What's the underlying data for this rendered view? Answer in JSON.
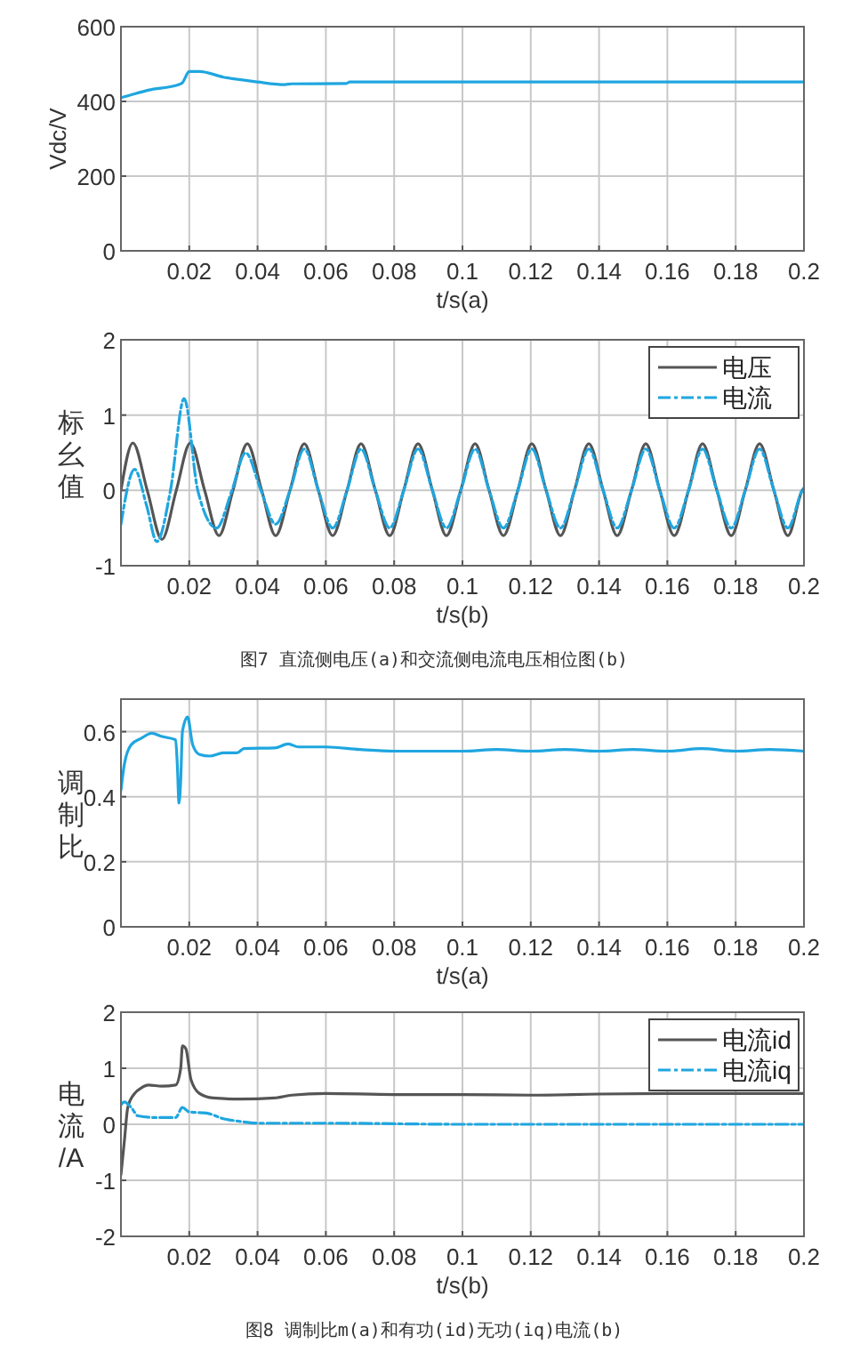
{
  "chart_data": [
    {
      "type": "line",
      "xlabel": "t/s(a)",
      "ylabel": "Vdc/V",
      "xlim": [
        0,
        0.2
      ],
      "ylim": [
        0,
        600
      ],
      "xticks": [
        0.02,
        0.04,
        0.06,
        0.08,
        0.1,
        0.12,
        0.14,
        0.16,
        0.18,
        0.2
      ],
      "yticks": [
        0,
        200,
        400,
        600
      ],
      "grid": true,
      "series": [
        {
          "color": "#1fa6e0",
          "x": [
            0,
            0.002,
            0.008,
            0.017,
            0.018,
            0.02,
            0.023,
            0.03,
            0.04,
            0.048,
            0.05,
            0.066,
            0.067,
            0.2
          ],
          "values": [
            410,
            415,
            430,
            445,
            450,
            480,
            480,
            465,
            452,
            445,
            447,
            448,
            452,
            452
          ]
        }
      ]
    },
    {
      "type": "line",
      "xlabel": "t/s(b)",
      "ylabel": "标幺值",
      "xlim": [
        0,
        0.2
      ],
      "ylim": [
        -1,
        2
      ],
      "xticks": [
        0.02,
        0.04,
        0.06,
        0.08,
        0.1,
        0.12,
        0.14,
        0.16,
        0.18,
        0.2
      ],
      "yticks": [
        -1,
        0,
        1,
        2
      ],
      "grid": true,
      "legend": "top right",
      "annotations": [
        "图7 直流侧电压(a)和交流侧电流电压相位图(b)"
      ],
      "series": [
        {
          "name": "电压",
          "color": "#555555",
          "line_style": "solid",
          "x": [
            0,
            0.0035,
            0.0077,
            0.012,
            0.0162,
            0.0203,
            0.0245,
            0.0287,
            0.0328,
            0.037,
            0.0412,
            0.0453,
            0.0495,
            0.0537,
            0.0578,
            0.062,
            0.0662,
            0.0703,
            0.0745,
            0.0787,
            0.0828,
            0.087,
            0.0912,
            0.0953,
            0.0995,
            0.1037,
            0.1078,
            0.112,
            0.1162,
            0.1203,
            0.1245,
            0.1287,
            0.1328,
            0.137,
            0.1412,
            0.1453,
            0.1495,
            0.1537,
            0.1578,
            0.162,
            0.1662,
            0.1703,
            0.1745,
            0.1787,
            0.1828,
            0.187,
            0.1912,
            0.1953,
            0.1995,
            0.2
          ],
          "values": [
            0,
            0.63,
            0,
            -0.65,
            0,
            0.63,
            0,
            -0.6,
            0,
            0.62,
            0,
            -0.6,
            0,
            0.62,
            0,
            -0.6,
            0,
            0.62,
            0,
            -0.6,
            0,
            0.62,
            0,
            -0.6,
            0,
            0.62,
            0,
            -0.6,
            0,
            0.62,
            0,
            -0.6,
            0,
            0.62,
            0,
            -0.6,
            0,
            0.62,
            0,
            -0.6,
            0,
            0.62,
            0,
            -0.6,
            0,
            0.62,
            0,
            -0.6,
            0,
            0.03
          ]
        },
        {
          "name": "电流",
          "color": "#1fa6e0",
          "line_style": "dashed",
          "x": [
            0,
            0.004,
            0.0075,
            0.0105,
            0.0145,
            0.0185,
            0.0225,
            0.028,
            0.0325,
            0.0365,
            0.041,
            0.0453,
            0.0495,
            0.0537,
            0.0578,
            0.062,
            0.0662,
            0.0703,
            0.0745,
            0.0787,
            0.0828,
            0.087,
            0.0912,
            0.0953,
            0.0995,
            0.1037,
            0.1078,
            0.112,
            0.1162,
            0.1203,
            0.1245,
            0.1287,
            0.1328,
            0.137,
            0.1412,
            0.1453,
            0.1495,
            0.1537,
            0.1578,
            0.162,
            0.1662,
            0.1703,
            0.1745,
            0.1787,
            0.1828,
            0.187,
            0.1912,
            0.1953,
            0.1995,
            0.2
          ],
          "values": [
            -0.45,
            0.28,
            -0.2,
            -0.68,
            0,
            1.22,
            0,
            -0.5,
            0,
            0.5,
            0,
            -0.45,
            0,
            0.55,
            0,
            -0.5,
            0,
            0.55,
            0,
            -0.5,
            0,
            0.55,
            0,
            -0.5,
            0,
            0.55,
            0,
            -0.5,
            0,
            0.55,
            0,
            -0.5,
            0,
            0.55,
            0,
            -0.5,
            0,
            0.55,
            0,
            -0.5,
            0,
            0.55,
            0,
            -0.5,
            0,
            0.55,
            0,
            -0.5,
            0,
            0.03
          ]
        }
      ]
    },
    {
      "type": "line",
      "xlabel": "t/s(a)",
      "ylabel": "调制比",
      "xlim": [
        0,
        0.2
      ],
      "ylim": [
        0,
        0.7
      ],
      "xticks": [
        0.02,
        0.04,
        0.06,
        0.08,
        0.1,
        0.12,
        0.14,
        0.16,
        0.18,
        0.2
      ],
      "yticks": [
        0,
        0.2,
        0.4,
        0.6
      ],
      "grid": true,
      "series": [
        {
          "color": "#1fa6e0",
          "x": [
            0,
            0.001,
            0.003,
            0.006,
            0.009,
            0.012,
            0.016,
            0.0165,
            0.017,
            0.0175,
            0.018,
            0.0195,
            0.021,
            0.023,
            0.026,
            0.03,
            0.034,
            0.036,
            0.045,
            0.049,
            0.052,
            0.06,
            0.07,
            0.08,
            0.1,
            0.11,
            0.12,
            0.13,
            0.14,
            0.15,
            0.16,
            0.17,
            0.18,
            0.19,
            0.2
          ],
          "values": [
            0.42,
            0.5,
            0.56,
            0.58,
            0.595,
            0.585,
            0.575,
            0.5,
            0.38,
            0.45,
            0.6,
            0.645,
            0.56,
            0.53,
            0.525,
            0.535,
            0.535,
            0.548,
            0.55,
            0.562,
            0.553,
            0.553,
            0.545,
            0.54,
            0.54,
            0.545,
            0.54,
            0.545,
            0.54,
            0.545,
            0.54,
            0.548,
            0.54,
            0.545,
            0.54
          ]
        }
      ]
    },
    {
      "type": "line",
      "xlabel": "t/s(b)",
      "ylabel": "电流/A",
      "xlim": [
        0,
        0.2
      ],
      "ylim": [
        -2,
        2
      ],
      "xticks": [
        0.02,
        0.04,
        0.06,
        0.08,
        0.1,
        0.12,
        0.14,
        0.16,
        0.18,
        0.2
      ],
      "yticks": [
        -2,
        -1,
        0,
        1,
        2
      ],
      "grid": true,
      "legend": "top right",
      "annotations": [
        "图8 调制比m(a)和有功(id)无功(iq)电流(b)"
      ],
      "series": [
        {
          "name": "电流id",
          "color": "#555555",
          "line_style": "solid",
          "x": [
            0,
            0.001,
            0.002,
            0.004,
            0.006,
            0.008,
            0.012,
            0.016,
            0.0175,
            0.018,
            0.019,
            0.0205,
            0.023,
            0.027,
            0.035,
            0.045,
            0.05,
            0.06,
            0.08,
            0.1,
            0.12,
            0.14,
            0.16,
            0.18,
            0.2
          ],
          "values": [
            -0.9,
            -0.3,
            0.3,
            0.55,
            0.65,
            0.7,
            0.68,
            0.7,
            1.0,
            1.4,
            1.35,
            0.8,
            0.55,
            0.47,
            0.45,
            0.47,
            0.52,
            0.55,
            0.53,
            0.53,
            0.52,
            0.54,
            0.55,
            0.55,
            0.55
          ]
        },
        {
          "name": "电流iq",
          "color": "#1fa6e0",
          "line_style": "dashed",
          "x": [
            0,
            0.001,
            0.003,
            0.005,
            0.01,
            0.016,
            0.018,
            0.02,
            0.025,
            0.03,
            0.035,
            0.04,
            0.06,
            0.1,
            0.15,
            0.2
          ],
          "values": [
            0.35,
            0.4,
            0.3,
            0.15,
            0.12,
            0.12,
            0.3,
            0.22,
            0.2,
            0.1,
            0.05,
            0.02,
            0.02,
            0,
            0,
            0
          ]
        }
      ]
    }
  ]
}
